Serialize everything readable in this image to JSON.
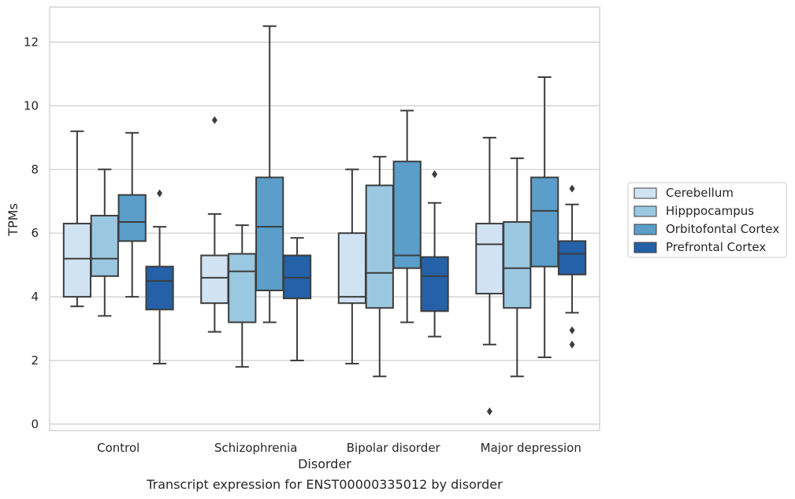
{
  "caption": "Transcript expression for ENST00000335012 by disorder",
  "chart_data": {
    "type": "box",
    "xlabel": "Disorder",
    "ylabel": "TPMs",
    "ylim": [
      -0.2,
      13.1
    ],
    "yticks": [
      0,
      2,
      4,
      6,
      8,
      10,
      12
    ],
    "grid": "horizontal",
    "legend_position": "right",
    "categories": [
      "Control",
      "Schizophrenia",
      "Bipolar disorder",
      "Major depression"
    ],
    "series": [
      {
        "name": "Cerebellum",
        "color": "#d1e2f2",
        "boxes": [
          {
            "whislo": 3.7,
            "q1": 4.0,
            "med": 5.2,
            "q3": 6.3,
            "whishi": 9.2,
            "fliers": []
          },
          {
            "whislo": 2.9,
            "q1": 3.8,
            "med": 4.6,
            "q3": 5.3,
            "whishi": 6.6,
            "fliers": [
              9.55
            ]
          },
          {
            "whislo": 1.9,
            "q1": 3.8,
            "med": 4.0,
            "q3": 6.0,
            "whishi": 8.0,
            "fliers": []
          },
          {
            "whislo": 2.5,
            "q1": 4.1,
            "med": 5.65,
            "q3": 6.3,
            "whishi": 9.0,
            "fliers": [
              0.4
            ]
          }
        ]
      },
      {
        "name": "Hipppocampus",
        "color": "#9ac8e0",
        "boxes": [
          {
            "whislo": 3.4,
            "q1": 4.65,
            "med": 5.2,
            "q3": 6.55,
            "whishi": 8.0,
            "fliers": []
          },
          {
            "whislo": 1.8,
            "q1": 3.2,
            "med": 4.8,
            "q3": 5.35,
            "whishi": 6.25,
            "fliers": []
          },
          {
            "whislo": 1.5,
            "q1": 3.65,
            "med": 4.75,
            "q3": 7.5,
            "whishi": 8.4,
            "fliers": []
          },
          {
            "whislo": 1.5,
            "q1": 3.65,
            "med": 4.9,
            "q3": 6.35,
            "whishi": 8.35,
            "fliers": []
          }
        ]
      },
      {
        "name": "Orbitofontal Cortex",
        "color": "#5a9ec9",
        "boxes": [
          {
            "whislo": 4.0,
            "q1": 5.75,
            "med": 6.35,
            "q3": 7.2,
            "whishi": 9.15,
            "fliers": []
          },
          {
            "whislo": 3.2,
            "q1": 4.2,
            "med": 6.2,
            "q3": 7.75,
            "whishi": 12.5,
            "fliers": []
          },
          {
            "whislo": 3.2,
            "q1": 4.9,
            "med": 5.3,
            "q3": 8.25,
            "whishi": 9.85,
            "fliers": []
          },
          {
            "whislo": 2.1,
            "q1": 4.95,
            "med": 6.7,
            "q3": 7.75,
            "whishi": 10.9,
            "fliers": []
          }
        ]
      },
      {
        "name": "Prefrontal Cortex",
        "color": "#2461a8",
        "boxes": [
          {
            "whislo": 1.9,
            "q1": 3.6,
            "med": 4.5,
            "q3": 4.95,
            "whishi": 6.2,
            "fliers": [
              7.25
            ]
          },
          {
            "whislo": 2.0,
            "q1": 3.95,
            "med": 4.6,
            "q3": 5.3,
            "whishi": 5.85,
            "fliers": []
          },
          {
            "whislo": 2.75,
            "q1": 3.55,
            "med": 4.65,
            "q3": 5.25,
            "whishi": 6.95,
            "fliers": [
              7.85
            ]
          },
          {
            "whislo": 3.5,
            "q1": 4.7,
            "med": 5.35,
            "q3": 5.75,
            "whishi": 6.9,
            "fliers": [
              7.4,
              2.95,
              2.5
            ]
          }
        ]
      }
    ]
  }
}
